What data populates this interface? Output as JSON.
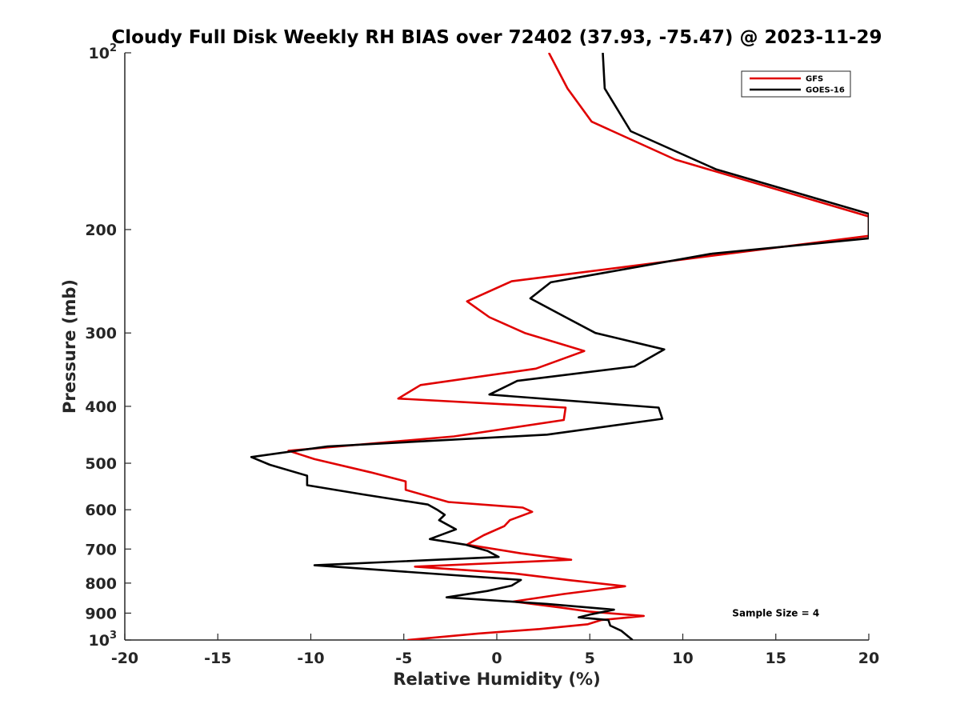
{
  "chart_data": {
    "type": "line",
    "title": "Cloudy Full Disk Weekly RH BIAS over 72402 (37.93, -75.47) @ 2023-11-29",
    "xlabel": "Relative Humidity (%)",
    "ylabel": "Pressure (mb)",
    "xlim": [
      -20,
      20
    ],
    "ylim": [
      100,
      1000
    ],
    "yscale": "log",
    "y_reversed": true,
    "grid": false,
    "legend_position": "top-right",
    "x_ticks": [
      "-20",
      "-15",
      "-10",
      "-5",
      "0",
      "5",
      "10",
      "15",
      "20"
    ],
    "y_ticks": [
      {
        "value": 100,
        "base": "10",
        "exp": "2"
      },
      {
        "value": 200,
        "label": "200"
      },
      {
        "value": 300,
        "label": "300"
      },
      {
        "value": 400,
        "label": "400"
      },
      {
        "value": 500,
        "label": "500"
      },
      {
        "value": 600,
        "label": "600"
      },
      {
        "value": 700,
        "label": "700"
      },
      {
        "value": 800,
        "label": "800"
      },
      {
        "value": 900,
        "label": "900"
      },
      {
        "value": 1000,
        "base": "10",
        "exp": "3"
      }
    ],
    "series": [
      {
        "name": "GFS",
        "color": "#e00000",
        "points": [
          [
            2.8,
            100
          ],
          [
            3.8,
            115
          ],
          [
            5.1,
            131
          ],
          [
            9.6,
            152
          ],
          [
            20.0,
            190
          ],
          [
            20.0,
            205
          ],
          [
            0.8,
            245
          ],
          [
            -1.6,
            265
          ],
          [
            -0.4,
            282
          ],
          [
            1.5,
            300
          ],
          [
            4.7,
            322
          ],
          [
            2.1,
            345
          ],
          [
            -4.1,
            368
          ],
          [
            -5.3,
            388
          ],
          [
            3.7,
            402
          ],
          [
            3.6,
            422
          ],
          [
            -2.3,
            450
          ],
          [
            -11.2,
            476
          ],
          [
            -9.8,
            492
          ],
          [
            -6.8,
            518
          ],
          [
            -4.9,
            537
          ],
          [
            -4.9,
            555
          ],
          [
            -2.6,
            582
          ],
          [
            1.4,
            595
          ],
          [
            1.9,
            605
          ],
          [
            0.7,
            625
          ],
          [
            0.4,
            640
          ],
          [
            -0.7,
            663
          ],
          [
            -1.6,
            688
          ],
          [
            1.3,
            712
          ],
          [
            4.0,
            730
          ],
          [
            -4.4,
            750
          ],
          [
            0.9,
            770
          ],
          [
            3.8,
            790
          ],
          [
            6.9,
            810
          ],
          [
            3.6,
            835
          ],
          [
            0.9,
            860
          ],
          [
            3.4,
            880
          ],
          [
            5.0,
            895
          ],
          [
            7.9,
            910
          ],
          [
            5.6,
            925
          ],
          [
            4.9,
            940
          ],
          [
            2.3,
            958
          ],
          [
            -1.0,
            975
          ],
          [
            -4.8,
            1000
          ]
        ]
      },
      {
        "name": "GOES-16",
        "color": "#000000",
        "points": [
          [
            5.7,
            100
          ],
          [
            5.8,
            115
          ],
          [
            7.2,
            136
          ],
          [
            11.8,
            158
          ],
          [
            20.0,
            188
          ],
          [
            20.0,
            207
          ],
          [
            11.5,
            220
          ],
          [
            2.9,
            246
          ],
          [
            1.8,
            262
          ],
          [
            3.7,
            282
          ],
          [
            5.3,
            300
          ],
          [
            9.0,
            320
          ],
          [
            7.4,
            342
          ],
          [
            1.1,
            362
          ],
          [
            -0.4,
            382
          ],
          [
            8.7,
            402
          ],
          [
            8.9,
            420
          ],
          [
            2.7,
            447
          ],
          [
            -9.1,
            468
          ],
          [
            -13.2,
            488
          ],
          [
            -12.2,
            503
          ],
          [
            -10.2,
            525
          ],
          [
            -10.2,
            545
          ],
          [
            -7.2,
            565
          ],
          [
            -3.7,
            588
          ],
          [
            -3.2,
            600
          ],
          [
            -2.8,
            612
          ],
          [
            -3.1,
            625
          ],
          [
            -2.2,
            648
          ],
          [
            -3.6,
            673
          ],
          [
            -1.7,
            688
          ],
          [
            -0.5,
            705
          ],
          [
            0.1,
            722
          ],
          [
            -9.8,
            746
          ],
          [
            1.3,
            790
          ],
          [
            0.8,
            808
          ],
          [
            -0.5,
            825
          ],
          [
            -2.7,
            846
          ],
          [
            2.7,
            868
          ],
          [
            6.3,
            888
          ],
          [
            5.0,
            905
          ],
          [
            4.4,
            915
          ],
          [
            6.0,
            925
          ],
          [
            6.1,
            945
          ],
          [
            6.7,
            965
          ],
          [
            7.3,
            1000
          ]
        ]
      }
    ],
    "annotations": [
      {
        "text": "Sample Size = 4",
        "x": 15.0,
        "y": 900
      }
    ]
  }
}
